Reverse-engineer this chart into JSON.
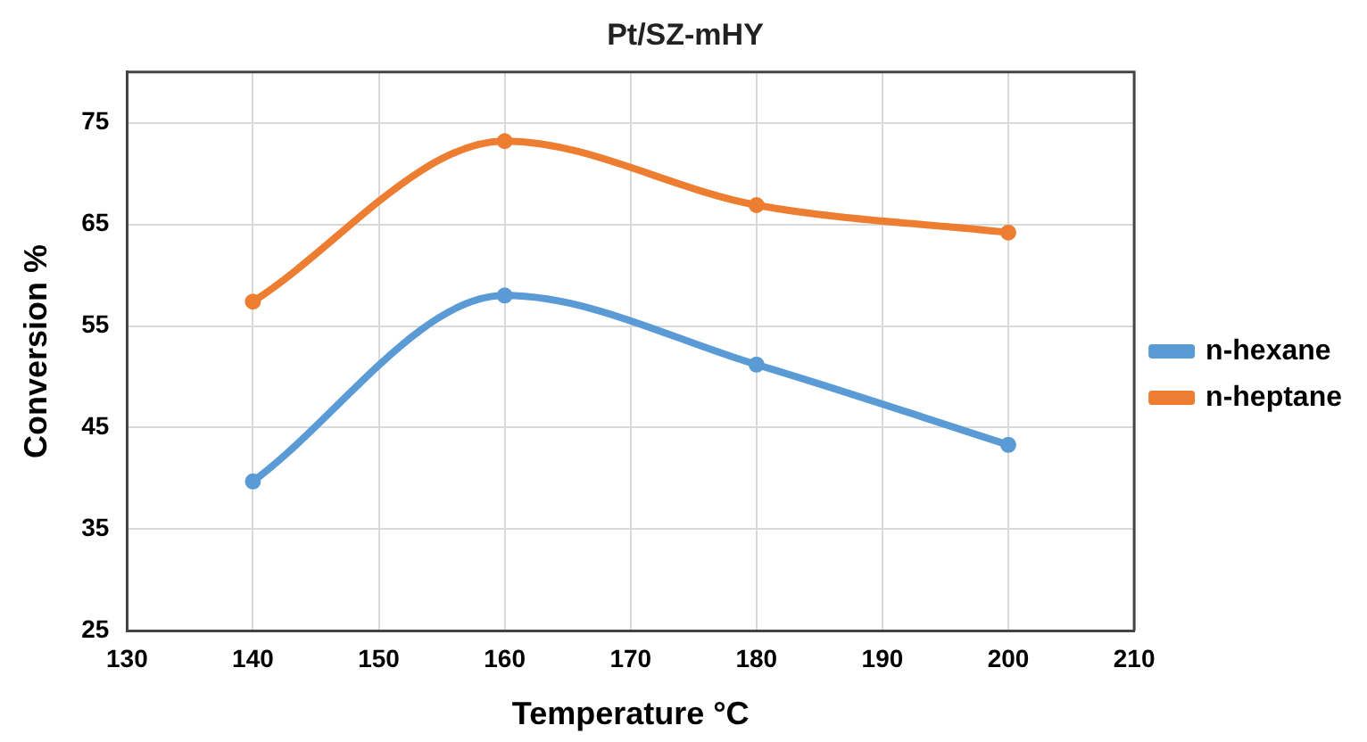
{
  "chart_data": {
    "type": "line",
    "title": "Pt/SZ-mHY",
    "xlabel": "Temperature °C",
    "ylabel": "Conversion %",
    "x": [
      140,
      160,
      180,
      200
    ],
    "series": [
      {
        "name": "n-hexane",
        "color": "#5b9bd5",
        "values": [
          39.7,
          58.0,
          51.2,
          43.3
        ]
      },
      {
        "name": "n-heptane",
        "color": "#ed7d31",
        "values": [
          57.4,
          73.2,
          66.9,
          64.2
        ]
      }
    ],
    "xlim": [
      130,
      210
    ],
    "xticks": [
      130,
      140,
      150,
      160,
      170,
      180,
      190,
      200,
      210
    ],
    "ylim": [
      25,
      80
    ],
    "yticks": [
      25,
      35,
      45,
      55,
      65,
      75
    ],
    "grid": true,
    "legend": "right",
    "marker": "circle",
    "line_style": "solid"
  }
}
